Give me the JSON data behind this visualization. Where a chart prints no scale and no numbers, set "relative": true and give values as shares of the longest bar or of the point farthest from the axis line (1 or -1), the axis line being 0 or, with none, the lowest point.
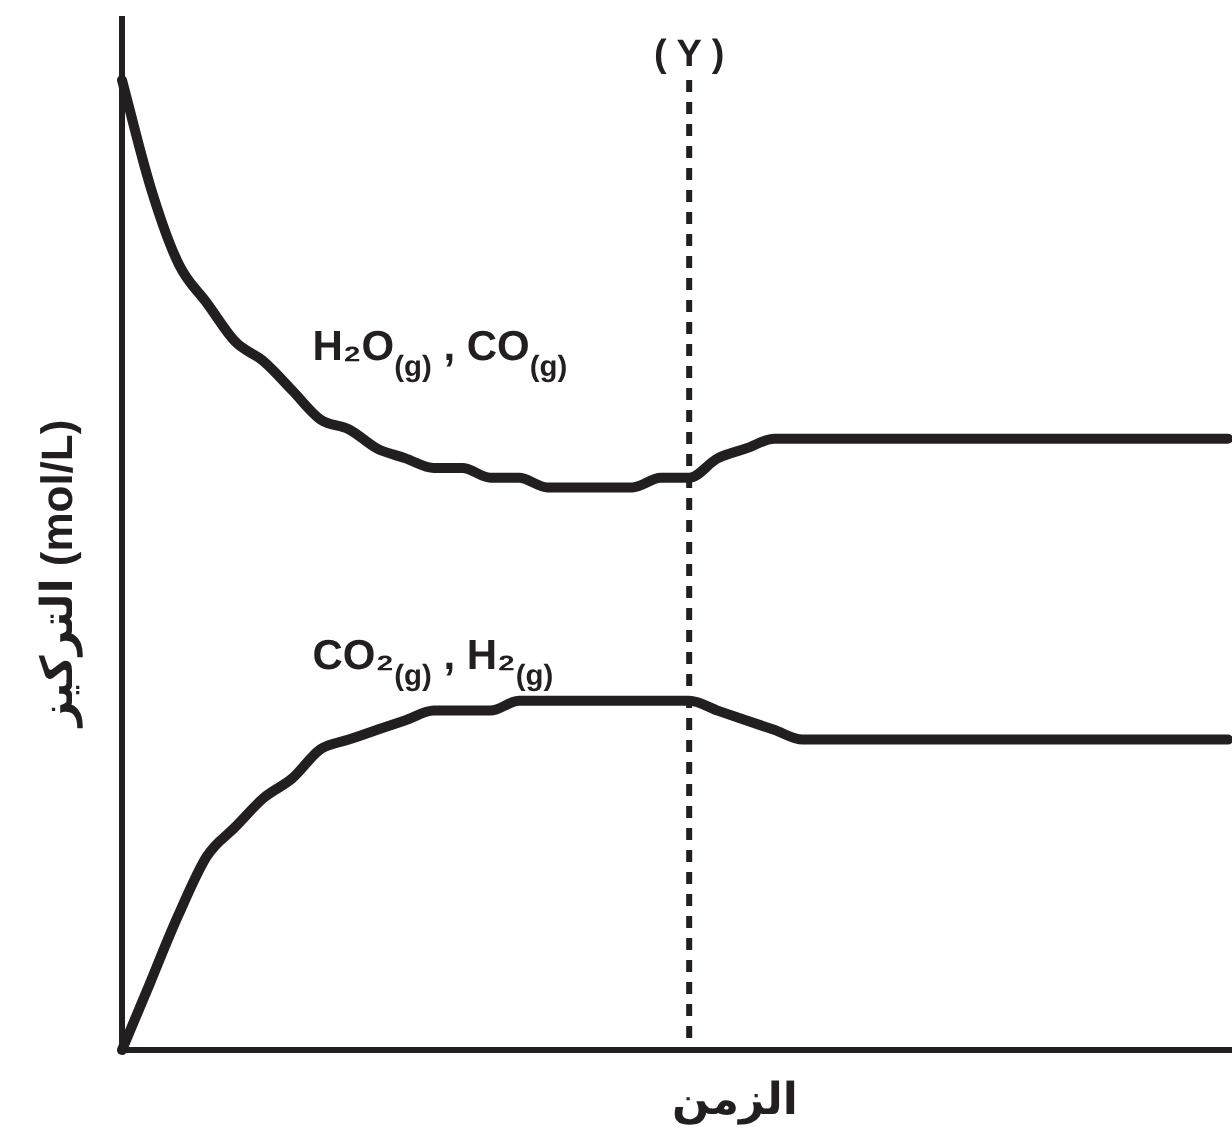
{
  "chart_data": {
    "type": "line",
    "relative": true,
    "xlabel": "الزمن",
    "ylabel": "التركيز (mol/L)",
    "categories": [
      null,
      null,
      null,
      null,
      null,
      null,
      null,
      null,
      null,
      null,
      null,
      null,
      null,
      null,
      null,
      null,
      null,
      null,
      null,
      null,
      null,
      null,
      null,
      null,
      null,
      null,
      null,
      null,
      null,
      null,
      null,
      null,
      null,
      null,
      null,
      null,
      null,
      null,
      null,
      null
    ],
    "series": [
      {
        "name": "H₂O$_{(g)}$ , CO$_{(g)}$",
        "color": "#231f20",
        "values": [
          1.0,
          0.89,
          0.81,
          0.77,
          0.73,
          0.71,
          0.68,
          0.65,
          0.64,
          0.62,
          0.61,
          0.6,
          0.6,
          0.59,
          0.59,
          0.58,
          0.58,
          0.58,
          0.58,
          0.59,
          0.59,
          0.61,
          0.62,
          0.63,
          0.63,
          0.63,
          0.63,
          0.63,
          0.63,
          0.63,
          0.63,
          0.63,
          0.63,
          0.63,
          0.63,
          0.63,
          0.63,
          0.63,
          0.63,
          0.63
        ]
      },
      {
        "name": "CO₂$_{(g)}$ , H₂$_{(g)}$",
        "color": "#231f20",
        "values": [
          0,
          0.07,
          0.14,
          0.2,
          0.23,
          0.26,
          0.28,
          0.31,
          0.32,
          0.33,
          0.34,
          0.35,
          0.35,
          0.35,
          0.36,
          0.36,
          0.36,
          0.36,
          0.36,
          0.36,
          0.36,
          0.35,
          0.34,
          0.33,
          0.32,
          0.32,
          0.32,
          0.32,
          0.32,
          0.32,
          0.32,
          0.32,
          0.32,
          0.32,
          0.32,
          0.32,
          0.32,
          0.32,
          0.32,
          0.32
        ]
      }
    ],
    "annotations": [
      "( Y )"
    ],
    "line_style": "solid",
    "marker": "none"
  }
}
